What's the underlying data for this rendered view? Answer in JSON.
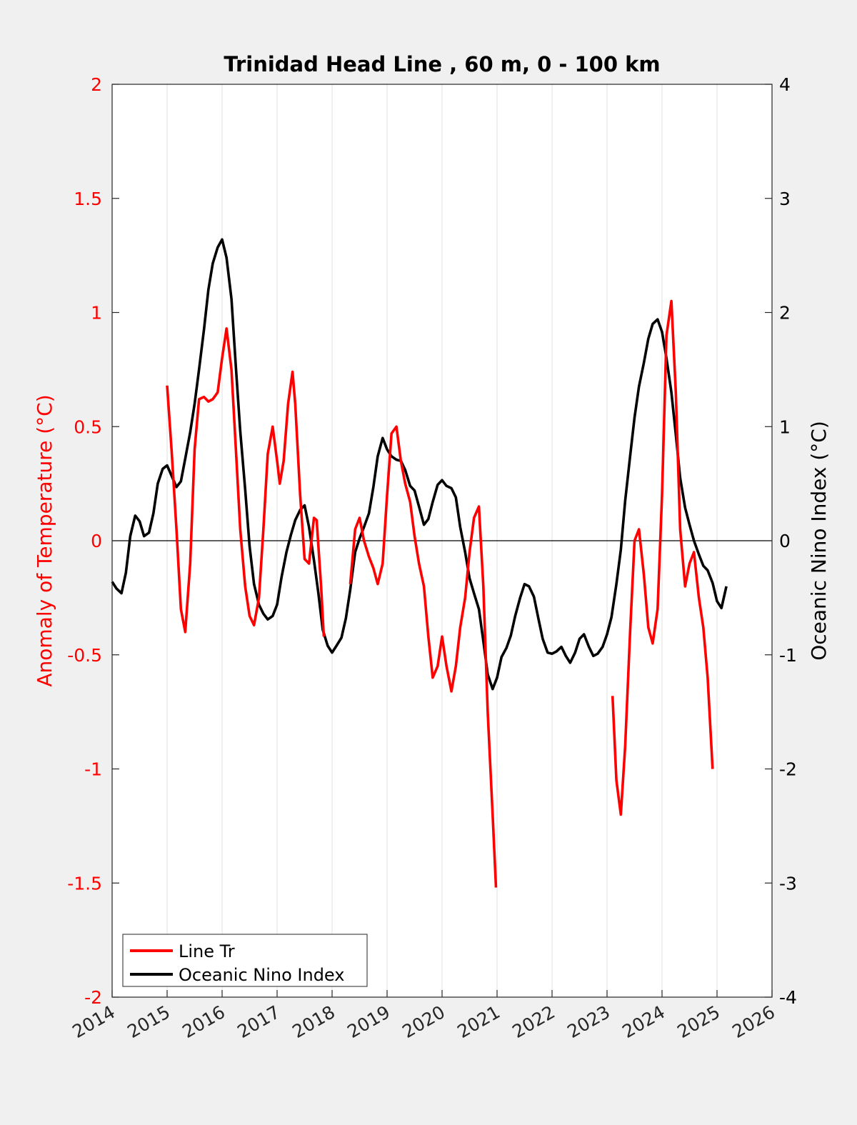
{
  "chart_data": {
    "type": "line",
    "title": "Trinidad Head Line , 60 m, 0 - 100 km",
    "ylabel_left": "Anomaly of Temperature (°C)",
    "ylabel_right": "Oceanic Nino Index (°C)",
    "xlim": [
      2014,
      2026
    ],
    "ylim_left": [
      -2,
      2
    ],
    "ylim_right": [
      -4,
      4
    ],
    "x_ticks": [
      "2014",
      "2015",
      "2016",
      "2017",
      "2018",
      "2019",
      "2020",
      "2021",
      "2022",
      "2023",
      "2024",
      "2025",
      "2026"
    ],
    "y_ticks_left": [
      "2",
      "1.5",
      "1",
      "0.5",
      "0",
      "-0.5",
      "-1",
      "-1.5",
      "-2"
    ],
    "y_ticks_right": [
      "4",
      "3",
      "2",
      "1",
      "0",
      "-1",
      "-2",
      "-3",
      "-4"
    ],
    "grid": "vertical",
    "zero_line": true,
    "legend_position": "bottom-left",
    "colors": {
      "line_tr": "#ff0000",
      "oni": "#000000",
      "left_axis": "#ff0000",
      "right_axis": "#000000"
    },
    "series": [
      {
        "name": "Line Tr",
        "axis": "left",
        "segments": [
          [
            [
              2015.0,
              0.68
            ],
            [
              2015.08,
              0.4
            ],
            [
              2015.17,
              0.05
            ],
            [
              2015.25,
              -0.3
            ],
            [
              2015.33,
              -0.4
            ],
            [
              2015.42,
              -0.1
            ],
            [
              2015.5,
              0.4
            ],
            [
              2015.58,
              0.62
            ],
            [
              2015.67,
              0.63
            ],
            [
              2015.75,
              0.61
            ],
            [
              2015.83,
              0.62
            ],
            [
              2015.92,
              0.65
            ],
            [
              2016.0,
              0.8
            ],
            [
              2016.08,
              0.93
            ],
            [
              2016.17,
              0.75
            ],
            [
              2016.25,
              0.4
            ],
            [
              2016.33,
              0.05
            ],
            [
              2016.42,
              -0.2
            ],
            [
              2016.5,
              -0.33
            ],
            [
              2016.58,
              -0.37
            ],
            [
              2016.67,
              -0.25
            ],
            [
              2016.75,
              0.05
            ],
            [
              2016.83,
              0.38
            ],
            [
              2016.92,
              0.5
            ],
            [
              2017.0,
              0.35
            ],
            [
              2017.05,
              0.25
            ],
            [
              2017.12,
              0.35
            ],
            [
              2017.2,
              0.6
            ],
            [
              2017.28,
              0.74
            ],
            [
              2017.33,
              0.6
            ],
            [
              2017.42,
              0.2
            ],
            [
              2017.5,
              -0.08
            ],
            [
              2017.58,
              -0.1
            ],
            [
              2017.67,
              0.1
            ],
            [
              2017.72,
              0.09
            ],
            [
              2017.8,
              -0.2
            ],
            [
              2017.85,
              -0.42
            ]
          ],
          [
            [
              2018.33,
              -0.19
            ],
            [
              2018.42,
              0.05
            ],
            [
              2018.5,
              0.1
            ],
            [
              2018.58,
              0.0
            ],
            [
              2018.67,
              -0.07
            ],
            [
              2018.75,
              -0.12
            ],
            [
              2018.83,
              -0.19
            ],
            [
              2018.92,
              -0.1
            ],
            [
              2019.0,
              0.2
            ],
            [
              2019.08,
              0.47
            ],
            [
              2019.17,
              0.5
            ],
            [
              2019.25,
              0.35
            ],
            [
              2019.33,
              0.25
            ],
            [
              2019.42,
              0.17
            ],
            [
              2019.5,
              0.02
            ],
            [
              2019.58,
              -0.1
            ],
            [
              2019.67,
              -0.2
            ],
            [
              2019.75,
              -0.42
            ],
            [
              2019.83,
              -0.6
            ],
            [
              2019.92,
              -0.55
            ],
            [
              2020.0,
              -0.42
            ],
            [
              2020.08,
              -0.55
            ],
            [
              2020.17,
              -0.66
            ],
            [
              2020.25,
              -0.55
            ],
            [
              2020.33,
              -0.38
            ],
            [
              2020.42,
              -0.25
            ],
            [
              2020.5,
              -0.05
            ],
            [
              2020.58,
              0.1
            ],
            [
              2020.67,
              0.15
            ],
            [
              2020.75,
              -0.2
            ],
            [
              2020.83,
              -0.75
            ],
            [
              2020.92,
              -1.2
            ],
            [
              2020.98,
              -1.52
            ]
          ],
          [
            [
              2023.1,
              -0.68
            ],
            [
              2023.17,
              -1.05
            ],
            [
              2023.25,
              -1.2
            ],
            [
              2023.33,
              -0.9
            ],
            [
              2023.42,
              -0.4
            ],
            [
              2023.5,
              0.0
            ],
            [
              2023.58,
              0.05
            ],
            [
              2023.67,
              -0.15
            ],
            [
              2023.75,
              -0.38
            ],
            [
              2023.83,
              -0.45
            ],
            [
              2023.92,
              -0.3
            ],
            [
              2024.0,
              0.2
            ],
            [
              2024.08,
              0.9
            ],
            [
              2024.17,
              1.05
            ],
            [
              2024.25,
              0.65
            ],
            [
              2024.33,
              0.05
            ],
            [
              2024.42,
              -0.2
            ],
            [
              2024.5,
              -0.1
            ],
            [
              2024.58,
              -0.05
            ],
            [
              2024.67,
              -0.25
            ],
            [
              2024.75,
              -0.38
            ],
            [
              2024.83,
              -0.6
            ],
            [
              2024.92,
              -1.0
            ]
          ]
        ]
      },
      {
        "name": "Oceanic Nino Index",
        "axis": "right",
        "segments": [
          [
            [
              2014.0,
              -0.36
            ],
            [
              2014.08,
              -0.42
            ],
            [
              2014.17,
              -0.46
            ],
            [
              2014.25,
              -0.28
            ],
            [
              2014.33,
              0.04
            ],
            [
              2014.42,
              0.22
            ],
            [
              2014.5,
              0.17
            ],
            [
              2014.58,
              0.04
            ],
            [
              2014.67,
              0.07
            ],
            [
              2014.75,
              0.24
            ],
            [
              2014.83,
              0.5
            ],
            [
              2014.92,
              0.63
            ],
            [
              2015.0,
              0.66
            ],
            [
              2015.08,
              0.57
            ],
            [
              2015.17,
              0.47
            ],
            [
              2015.25,
              0.52
            ],
            [
              2015.33,
              0.72
            ],
            [
              2015.42,
              0.95
            ],
            [
              2015.5,
              1.2
            ],
            [
              2015.58,
              1.5
            ],
            [
              2015.67,
              1.85
            ],
            [
              2015.75,
              2.2
            ],
            [
              2015.83,
              2.43
            ],
            [
              2015.92,
              2.57
            ],
            [
              2016.0,
              2.64
            ],
            [
              2016.08,
              2.48
            ],
            [
              2016.17,
              2.12
            ],
            [
              2016.25,
              1.52
            ],
            [
              2016.33,
              0.96
            ],
            [
              2016.42,
              0.45
            ],
            [
              2016.5,
              -0.05
            ],
            [
              2016.58,
              -0.38
            ],
            [
              2016.67,
              -0.56
            ],
            [
              2016.75,
              -0.64
            ],
            [
              2016.83,
              -0.69
            ],
            [
              2016.92,
              -0.66
            ],
            [
              2017.0,
              -0.56
            ],
            [
              2017.08,
              -0.32
            ],
            [
              2017.17,
              -0.1
            ],
            [
              2017.25,
              0.05
            ],
            [
              2017.33,
              0.18
            ],
            [
              2017.42,
              0.27
            ],
            [
              2017.5,
              0.31
            ],
            [
              2017.58,
              0.12
            ],
            [
              2017.67,
              -0.17
            ],
            [
              2017.75,
              -0.46
            ],
            [
              2017.83,
              -0.78
            ],
            [
              2017.92,
              -0.92
            ],
            [
              2018.0,
              -0.98
            ],
            [
              2018.08,
              -0.92
            ],
            [
              2018.17,
              -0.85
            ],
            [
              2018.25,
              -0.68
            ],
            [
              2018.33,
              -0.43
            ],
            [
              2018.42,
              -0.1
            ],
            [
              2018.5,
              0.02
            ],
            [
              2018.58,
              0.12
            ],
            [
              2018.67,
              0.24
            ],
            [
              2018.75,
              0.47
            ],
            [
              2018.83,
              0.74
            ],
            [
              2018.92,
              0.9
            ],
            [
              2019.0,
              0.8
            ],
            [
              2019.08,
              0.74
            ],
            [
              2019.17,
              0.71
            ],
            [
              2019.25,
              0.7
            ],
            [
              2019.33,
              0.62
            ],
            [
              2019.42,
              0.48
            ],
            [
              2019.5,
              0.44
            ],
            [
              2019.58,
              0.3
            ],
            [
              2019.67,
              0.14
            ],
            [
              2019.75,
              0.19
            ],
            [
              2019.83,
              0.34
            ],
            [
              2019.92,
              0.49
            ],
            [
              2020.0,
              0.53
            ],
            [
              2020.08,
              0.48
            ],
            [
              2020.17,
              0.46
            ],
            [
              2020.25,
              0.38
            ],
            [
              2020.33,
              0.12
            ],
            [
              2020.42,
              -0.1
            ],
            [
              2020.5,
              -0.33
            ],
            [
              2020.58,
              -0.46
            ],
            [
              2020.67,
              -0.6
            ],
            [
              2020.75,
              -0.88
            ],
            [
              2020.83,
              -1.17
            ],
            [
              2020.92,
              -1.3
            ],
            [
              2021.0,
              -1.2
            ],
            [
              2021.08,
              -1.02
            ],
            [
              2021.17,
              -0.94
            ],
            [
              2021.25,
              -0.83
            ],
            [
              2021.33,
              -0.66
            ],
            [
              2021.42,
              -0.5
            ],
            [
              2021.5,
              -0.38
            ],
            [
              2021.58,
              -0.4
            ],
            [
              2021.67,
              -0.49
            ],
            [
              2021.75,
              -0.68
            ],
            [
              2021.83,
              -0.86
            ],
            [
              2021.92,
              -0.98
            ],
            [
              2022.0,
              -0.99
            ],
            [
              2022.08,
              -0.97
            ],
            [
              2022.17,
              -0.93
            ],
            [
              2022.25,
              -1.01
            ],
            [
              2022.33,
              -1.07
            ],
            [
              2022.42,
              -0.98
            ],
            [
              2022.5,
              -0.86
            ],
            [
              2022.58,
              -0.82
            ],
            [
              2022.67,
              -0.93
            ],
            [
              2022.75,
              -1.01
            ],
            [
              2022.83,
              -0.99
            ],
            [
              2022.92,
              -0.93
            ],
            [
              2023.0,
              -0.82
            ],
            [
              2023.08,
              -0.67
            ],
            [
              2023.17,
              -0.38
            ],
            [
              2023.25,
              -0.08
            ],
            [
              2023.33,
              0.35
            ],
            [
              2023.42,
              0.74
            ],
            [
              2023.5,
              1.08
            ],
            [
              2023.58,
              1.35
            ],
            [
              2023.67,
              1.56
            ],
            [
              2023.75,
              1.77
            ],
            [
              2023.83,
              1.9
            ],
            [
              2023.92,
              1.94
            ],
            [
              2024.0,
              1.83
            ],
            [
              2024.08,
              1.6
            ],
            [
              2024.17,
              1.3
            ],
            [
              2024.25,
              0.93
            ],
            [
              2024.33,
              0.55
            ],
            [
              2024.42,
              0.29
            ],
            [
              2024.5,
              0.14
            ],
            [
              2024.58,
              0.0
            ],
            [
              2024.67,
              -0.12
            ],
            [
              2024.75,
              -0.22
            ],
            [
              2024.83,
              -0.26
            ],
            [
              2024.92,
              -0.37
            ],
            [
              2025.0,
              -0.53
            ],
            [
              2025.08,
              -0.59
            ],
            [
              2025.17,
              -0.4
            ]
          ]
        ]
      }
    ],
    "legend": {
      "entries": [
        "Line Tr",
        "Oceanic Nino Index"
      ]
    }
  }
}
